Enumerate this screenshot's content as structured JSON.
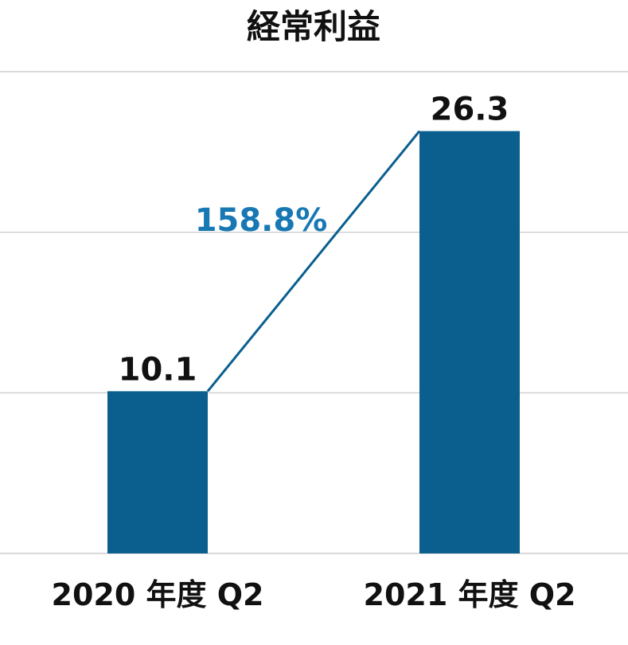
{
  "chart_data": {
    "type": "bar",
    "title": "経常利益",
    "categories": [
      "2020 年度 Q2",
      "2021 年度 Q2"
    ],
    "values": [
      10.1,
      26.3
    ],
    "value_labels": [
      "10.1",
      "26.3"
    ],
    "ylim": [
      0,
      30
    ],
    "grid": true,
    "growth_label": "158.8%",
    "colors": {
      "bar": "#0a5f8f",
      "growth_text": "#1878b4",
      "connector": "#0a5f8f",
      "grid": "#c4c4c4"
    }
  }
}
